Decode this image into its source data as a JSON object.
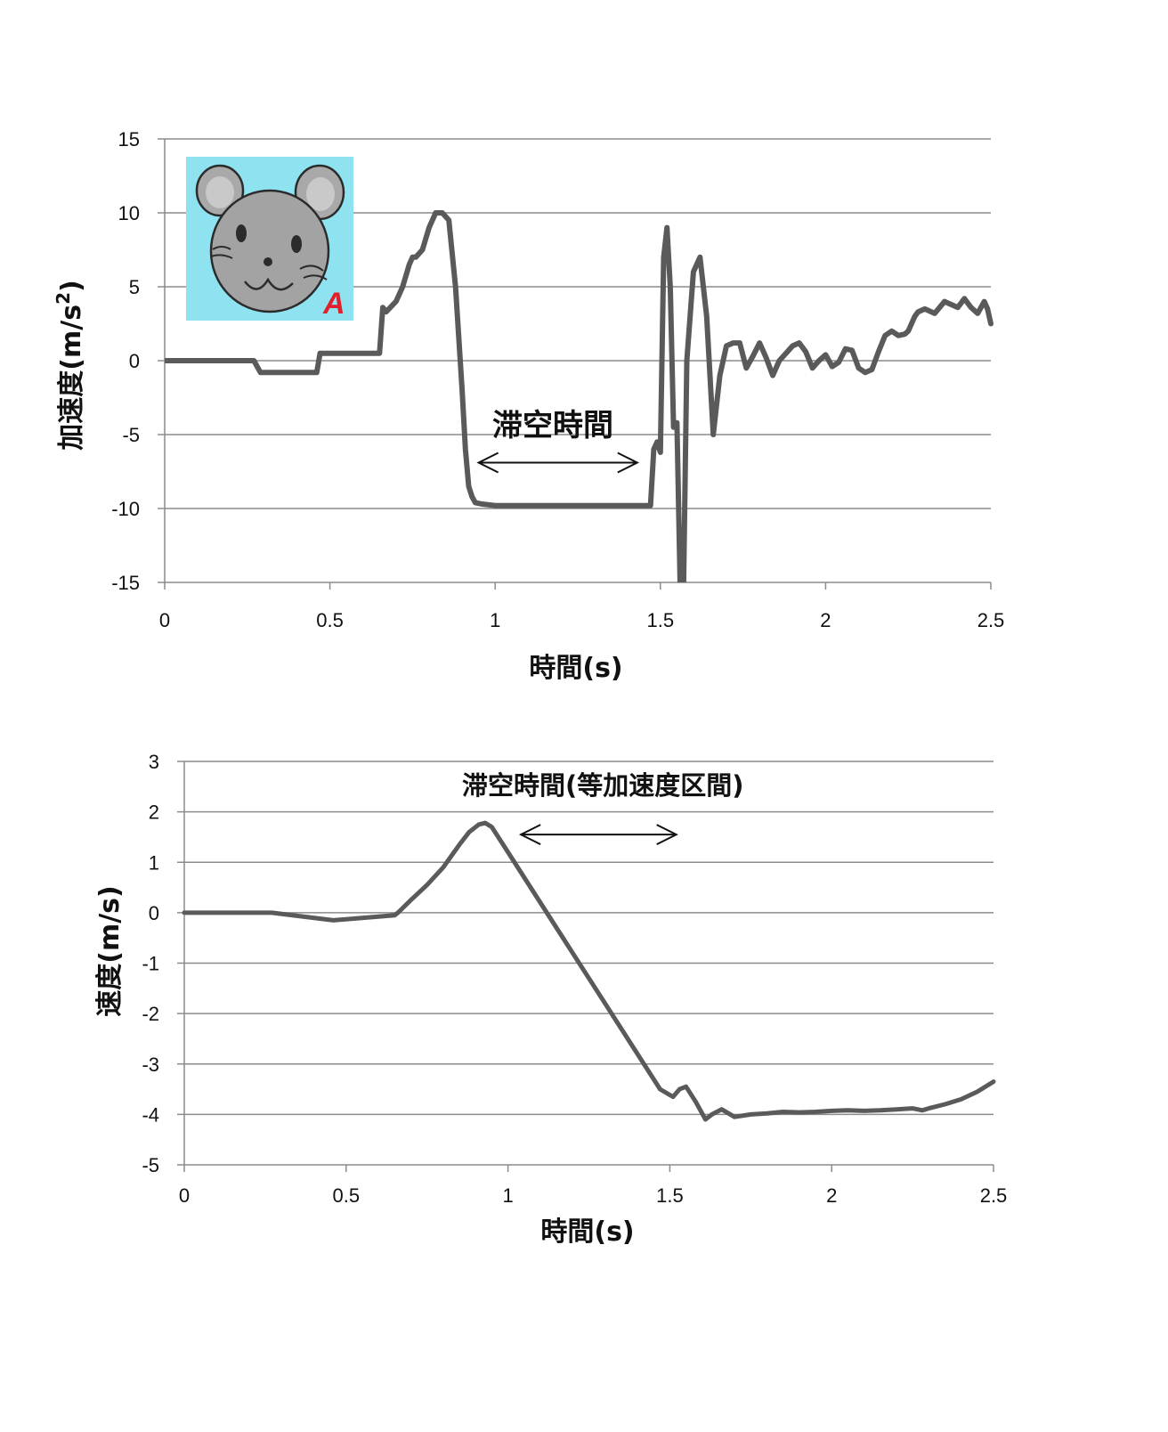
{
  "colors": {
    "line": "#5a5a5a",
    "grid": "#8c8c8c",
    "axis": "#8c8c8c",
    "text": "#111111",
    "inset_bg": "#8fe3f0",
    "inset_letter": "#e0202a"
  },
  "chart_data": [
    {
      "type": "line",
      "xlabel": "時間(s)",
      "ylabel_main": "加速度(m/s",
      "ylabel_sup": "2",
      "ylabel_end": ")",
      "xlim": [
        0,
        2.5
      ],
      "ylim": [
        -15,
        15
      ],
      "x_ticks": [
        "0",
        "0.5",
        "1",
        "1.5",
        "2",
        "2.5"
      ],
      "y_ticks": [
        "15",
        "10",
        "5",
        "0",
        "-5",
        "-10",
        "-15"
      ],
      "grid": true,
      "annotation": {
        "text": "滞空時間",
        "arrow_from_x": 0.95,
        "arrow_to_x": 1.43,
        "arrow_y": -6.9
      },
      "inset": {
        "description_icon": "mouse-face-icon",
        "letter": "A"
      },
      "series": [
        {
          "x": [
            0,
            0.27,
            0.29,
            0.46,
            0.47,
            0.65,
            0.66,
            0.67,
            0.7,
            0.72,
            0.74,
            0.75,
            0.76,
            0.78,
            0.8,
            0.82,
            0.84,
            0.86,
            0.88,
            0.9,
            0.91,
            0.92,
            0.93,
            0.94,
            0.96,
            1.0,
            1.2,
            1.4,
            1.47,
            1.48,
            1.49,
            1.5,
            1.51,
            1.52,
            1.53,
            1.54,
            1.55,
            1.56,
            1.57,
            1.58,
            1.6,
            1.62,
            1.64,
            1.66,
            1.68,
            1.7,
            1.72,
            1.74,
            1.76,
            1.78,
            1.8,
            1.82,
            1.84,
            1.86,
            1.88,
            1.9,
            1.92,
            1.94,
            1.96,
            1.98,
            2.0,
            2.02,
            2.04,
            2.06,
            2.08,
            2.1,
            2.12,
            2.14,
            2.16,
            2.18,
            2.2,
            2.22,
            2.24,
            2.25,
            2.27,
            2.28,
            2.3,
            2.33,
            2.36,
            2.4,
            2.42,
            2.44,
            2.46,
            2.48,
            2.49,
            2.5
          ],
          "y": [
            0,
            0,
            -0.8,
            -0.8,
            0.5,
            0.5,
            3.6,
            3.3,
            4,
            5,
            6.5,
            7,
            7,
            7.5,
            9,
            10,
            10,
            9.5,
            5,
            -2,
            -6,
            -8.5,
            -9.2,
            -9.6,
            -9.7,
            -9.8,
            -9.8,
            -9.8,
            -9.8,
            -6,
            -5.5,
            -6.2,
            7,
            9,
            5,
            -4.5,
            -4.2,
            -15.5,
            -15.5,
            0,
            6,
            7,
            3,
            -5,
            -1,
            1,
            1.2,
            1.2,
            -0.5,
            0.3,
            1.2,
            0.2,
            -1,
            0,
            0.5,
            1,
            1.2,
            0.6,
            -0.5,
            0,
            0.4,
            -0.4,
            -0.1,
            0.8,
            0.7,
            -0.5,
            -0.8,
            -0.6,
            0.6,
            1.7,
            2,
            1.7,
            1.8,
            2,
            3,
            3.3,
            3.5,
            3.2,
            4,
            3.6,
            4.2,
            3.6,
            3.2,
            4,
            3.5,
            2.5
          ]
        }
      ]
    },
    {
      "type": "line",
      "xlabel": "時間(s)",
      "ylabel": "速度(m/s)",
      "xlim": [
        0,
        2.5
      ],
      "ylim": [
        -5,
        3
      ],
      "x_ticks": [
        "0",
        "0.5",
        "1",
        "1.5",
        "2",
        "2.5"
      ],
      "y_ticks": [
        "3",
        "2",
        "1",
        "0",
        "-1",
        "-2",
        "-3",
        "-4",
        "-5"
      ],
      "grid": true,
      "annotation": {
        "text": "滞空時間(等加速度区間)",
        "arrow_from_x": 1.04,
        "arrow_to_x": 1.52,
        "arrow_y": 1.55
      },
      "series": [
        {
          "x": [
            0,
            0.27,
            0.46,
            0.65,
            0.66,
            0.7,
            0.75,
            0.8,
            0.85,
            0.88,
            0.91,
            0.93,
            0.95,
            1.0,
            1.1,
            1.2,
            1.3,
            1.4,
            1.47,
            1.51,
            1.53,
            1.55,
            1.58,
            1.61,
            1.63,
            1.66,
            1.7,
            1.75,
            1.8,
            1.85,
            1.9,
            1.95,
            2.0,
            2.05,
            2.1,
            2.15,
            2.2,
            2.25,
            2.28,
            2.3,
            2.35,
            2.4,
            2.45,
            2.5
          ],
          "y": [
            0,
            0,
            -0.15,
            -0.05,
            0,
            0.25,
            0.55,
            0.9,
            1.35,
            1.6,
            1.75,
            1.78,
            1.7,
            1.2,
            0.2,
            -0.8,
            -1.8,
            -2.8,
            -3.5,
            -3.65,
            -3.5,
            -3.45,
            -3.75,
            -4.1,
            -4.0,
            -3.9,
            -4.05,
            -4.0,
            -3.98,
            -3.95,
            -3.96,
            -3.95,
            -3.93,
            -3.92,
            -3.93,
            -3.92,
            -3.9,
            -3.88,
            -3.92,
            -3.88,
            -3.8,
            -3.7,
            -3.55,
            -3.35
          ]
        }
      ]
    }
  ]
}
